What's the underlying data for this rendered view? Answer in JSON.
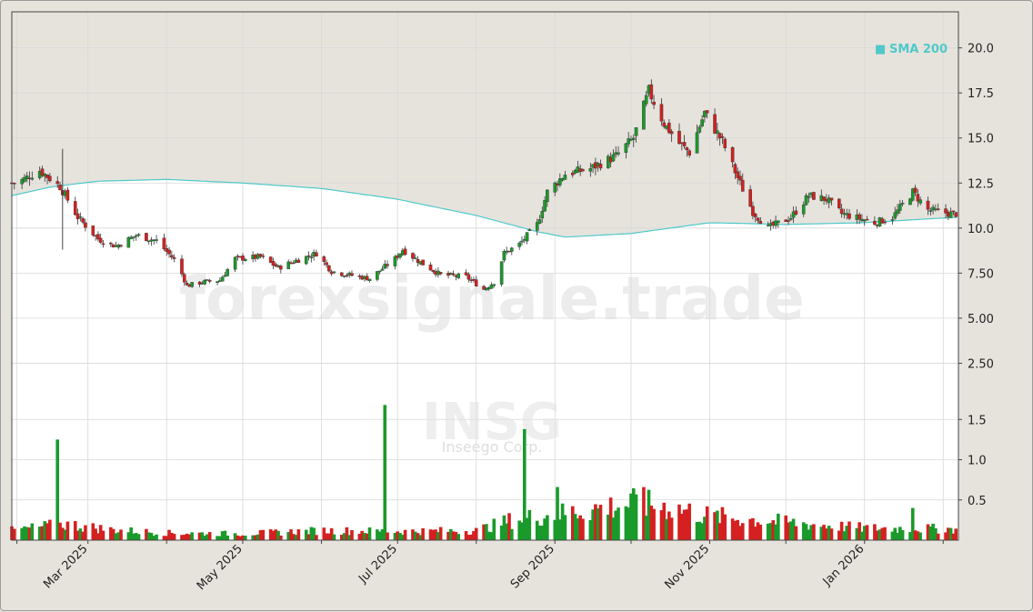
{
  "watermark": {
    "site": "forexsignale.trade",
    "ticker": "INSG",
    "company": "Inseego Corp."
  },
  "legend": {
    "sma_label": "SMA 200",
    "sma_marker": "■"
  },
  "colors": {
    "up": "#1a9a2a",
    "down": "#d42020",
    "sma": "#4fc9c9",
    "grid": "#d8d8d8",
    "price_bg_above": "#e6e3dd",
    "plot_bg": "#ffffff"
  },
  "chart_data": [
    {
      "type": "candlestick",
      "title": "",
      "y_ticks": [
        "2.50",
        "5.00",
        "7.50",
        "10.0",
        "12.5",
        "15.0",
        "17.5",
        "20.0"
      ],
      "x_ticks": [
        "Mar 2025",
        "May 2025",
        "Jul 2025",
        "Sep 2025",
        "Nov 2025",
        "Jan 2026"
      ],
      "x_range": [
        "2025-01-30",
        "2026-02-07"
      ],
      "y_range": [
        0,
        22
      ],
      "grid": true,
      "close_anchors": [
        [
          "2025-02-01",
          12.5
        ],
        [
          "2025-02-10",
          13.2
        ],
        [
          "2025-02-18",
          12.3
        ],
        [
          "2025-02-25",
          10.6
        ],
        [
          "2025-03-05",
          9.4
        ],
        [
          "2025-03-12",
          9.0
        ],
        [
          "2025-03-20",
          9.6
        ],
        [
          "2025-03-28",
          9.3
        ],
        [
          "2025-04-05",
          8.1
        ],
        [
          "2025-04-09",
          6.8
        ],
        [
          "2025-04-15",
          7.0
        ],
        [
          "2025-04-22",
          7.1
        ],
        [
          "2025-04-28",
          8.3
        ],
        [
          "2025-05-08",
          8.4
        ],
        [
          "2025-05-15",
          7.8
        ],
        [
          "2025-05-22",
          8.2
        ],
        [
          "2025-05-30",
          8.6
        ],
        [
          "2025-06-05",
          7.6
        ],
        [
          "2025-06-12",
          7.4
        ],
        [
          "2025-06-20",
          7.2
        ],
        [
          "2025-06-30",
          8.3
        ],
        [
          "2025-07-03",
          8.8
        ],
        [
          "2025-07-10",
          8.1
        ],
        [
          "2025-07-18",
          7.4
        ],
        [
          "2025-07-28",
          7.3
        ],
        [
          "2025-08-04",
          6.6
        ],
        [
          "2025-08-08",
          7.0
        ],
        [
          "2025-08-12",
          8.6
        ],
        [
          "2025-08-18",
          9.1
        ],
        [
          "2025-08-25",
          10.2
        ],
        [
          "2025-08-29",
          12.0
        ],
        [
          "2025-09-05",
          13.0
        ],
        [
          "2025-09-15",
          13.3
        ],
        [
          "2025-09-25",
          14.0
        ],
        [
          "2025-10-02",
          15.0
        ],
        [
          "2025-10-08",
          17.6
        ],
        [
          "2025-10-14",
          15.8
        ],
        [
          "2025-10-20",
          14.7
        ],
        [
          "2025-10-24",
          14.2
        ],
        [
          "2025-10-30",
          16.4
        ],
        [
          "2025-11-06",
          14.8
        ],
        [
          "2025-11-12",
          12.8
        ],
        [
          "2025-11-18",
          10.9
        ],
        [
          "2025-11-24",
          10.0
        ],
        [
          "2025-12-03",
          10.6
        ],
        [
          "2025-12-10",
          11.8
        ],
        [
          "2025-12-17",
          11.6
        ],
        [
          "2025-12-23",
          10.8
        ],
        [
          "2026-01-05",
          10.3
        ],
        [
          "2026-01-12",
          10.6
        ],
        [
          "2026-01-20",
          12.0
        ],
        [
          "2026-01-26",
          11.0
        ],
        [
          "2026-02-04",
          10.8
        ]
      ],
      "sma_200": [
        [
          "2025-01-30",
          11.8
        ],
        [
          "2025-02-15",
          12.3
        ],
        [
          "2025-03-05",
          12.6
        ],
        [
          "2025-04-01",
          12.7
        ],
        [
          "2025-05-01",
          12.5
        ],
        [
          "2025-06-01",
          12.2
        ],
        [
          "2025-07-01",
          11.6
        ],
        [
          "2025-08-01",
          10.7
        ],
        [
          "2025-08-25",
          9.8
        ],
        [
          "2025-09-05",
          9.5
        ],
        [
          "2025-10-01",
          9.7
        ],
        [
          "2025-11-01",
          10.3
        ],
        [
          "2025-12-01",
          10.2
        ],
        [
          "2026-01-01",
          10.3
        ],
        [
          "2026-02-06",
          10.6
        ]
      ]
    },
    {
      "type": "bar",
      "title": "",
      "y_ticks": [
        "0.5",
        "1.0",
        "1.5"
      ],
      "y_range": [
        0,
        1.85
      ],
      "grid": true,
      "base_volume": [
        [
          "2025-01-30",
          0.12
        ],
        [
          "2025-02-20",
          0.2
        ],
        [
          "2025-03-10",
          0.13
        ],
        [
          "2025-04-01",
          0.09
        ],
        [
          "2025-05-01",
          0.08
        ],
        [
          "2025-06-01",
          0.12
        ],
        [
          "2025-07-01",
          0.11
        ],
        [
          "2025-08-01",
          0.12
        ],
        [
          "2025-08-15",
          0.25
        ],
        [
          "2025-09-01",
          0.32
        ],
        [
          "2025-10-01",
          0.45
        ],
        [
          "2025-10-15",
          0.42
        ],
        [
          "2025-11-01",
          0.3
        ],
        [
          "2025-12-01",
          0.22
        ],
        [
          "2026-01-01",
          0.15
        ],
        [
          "2026-02-06",
          0.14
        ]
      ],
      "spikes": [
        {
          "date": "2025-02-17",
          "value": 1.25,
          "dir": "up"
        },
        {
          "date": "2025-06-26",
          "value": 1.68,
          "dir": "up"
        },
        {
          "date": "2025-08-20",
          "value": 1.38,
          "dir": "up"
        },
        {
          "date": "2025-09-02",
          "value": 0.66,
          "dir": "up"
        },
        {
          "date": "2025-10-06",
          "value": 0.66,
          "dir": "down"
        },
        {
          "date": "2026-01-20",
          "value": 0.4,
          "dir": "up"
        }
      ]
    }
  ]
}
